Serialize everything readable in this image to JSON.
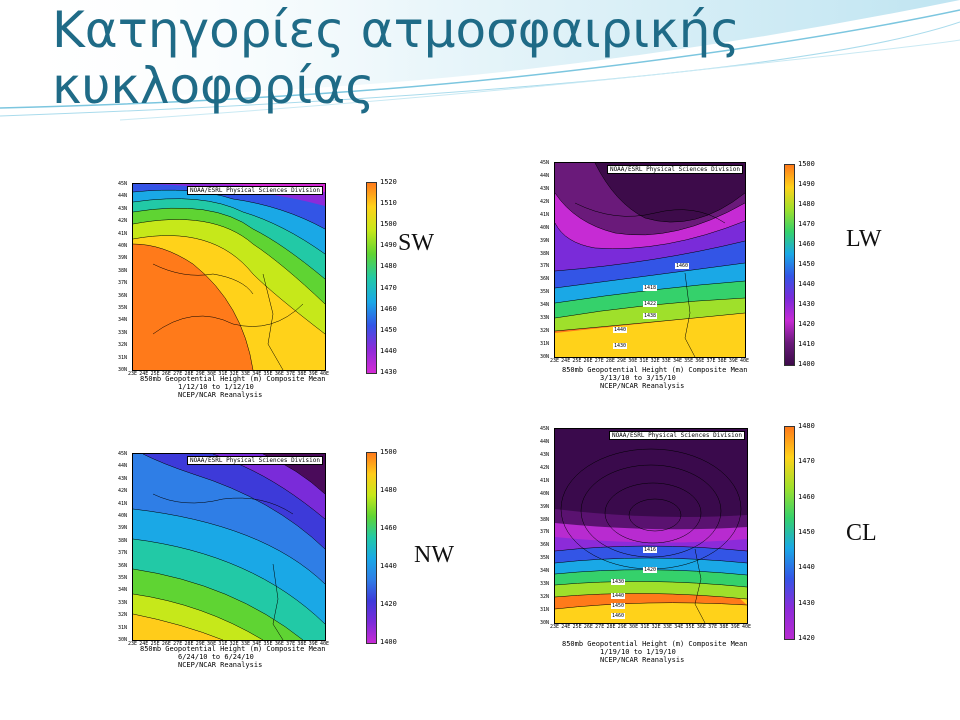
{
  "slide": {
    "title_line1": "Κατηγορίες ατμοσφαιρικής",
    "title_line2": "κυκλοφορίας"
  },
  "colors": {
    "title": "#1f6b87",
    "accent_band": "#8ccfe6"
  },
  "common": {
    "header": "NOAA/ESRL Physical Sciences Division",
    "caption_line1": "850mb Geopotential Height (m) Composite Mean",
    "caption_line3": "NCEP/NCAR Reanalysis",
    "lon_labels": [
      "23E",
      "24E",
      "25E",
      "26E",
      "27E",
      "28E",
      "29E",
      "30E",
      "31E",
      "32E",
      "33E",
      "34E",
      "35E",
      "36E",
      "37E",
      "38E",
      "39E",
      "40E"
    ]
  },
  "panels": [
    {
      "id": "sw",
      "tag": "SW",
      "dates": "1/12/10 to 1/12/10",
      "lat_labels": [
        "45N",
        "44N",
        "43N",
        "42N",
        "41N",
        "40N",
        "39N",
        "38N",
        "37N",
        "36N",
        "35N",
        "34N",
        "33N",
        "32N",
        "31N",
        "30N"
      ],
      "colorbar": [
        "1520",
        "1510",
        "1500",
        "1490",
        "1480",
        "1470",
        "1460",
        "1450",
        "1440",
        "1430"
      ],
      "contour_labels": []
    },
    {
      "id": "lw",
      "tag": "LW",
      "dates": "3/13/10 to 3/15/10",
      "lat_labels": [
        "45N",
        "44N",
        "43N",
        "42N",
        "41N",
        "40N",
        "39N",
        "38N",
        "37N",
        "36N",
        "35N",
        "34N",
        "33N",
        "32N",
        "31N",
        "30N"
      ],
      "colorbar": [
        "1500",
        "1490",
        "1480",
        "1470",
        "1460",
        "1450",
        "1440",
        "1430",
        "1420",
        "1410",
        "1400"
      ],
      "contour_labels": [
        "1460",
        "1418",
        "1422",
        "1438",
        "1440",
        "1430"
      ]
    },
    {
      "id": "nw",
      "tag": "NW",
      "dates": "6/24/10 to 6/24/10",
      "lat_labels": [
        "45N",
        "44N",
        "43N",
        "42N",
        "41N",
        "40N",
        "39N",
        "38N",
        "37N",
        "36N",
        "35N",
        "34N",
        "33N",
        "32N",
        "31N",
        "30N"
      ],
      "colorbar": [
        "1500",
        "1480",
        "1460",
        "1440",
        "1420",
        "1400"
      ],
      "contour_labels": []
    },
    {
      "id": "cl",
      "tag": "CL",
      "dates": "1/19/10 to 1/19/10",
      "lat_labels": [
        "45N",
        "44N",
        "43N",
        "42N",
        "41N",
        "40N",
        "39N",
        "38N",
        "37N",
        "36N",
        "35N",
        "34N",
        "33N",
        "32N",
        "31N",
        "30N"
      ],
      "colorbar": [
        "1480",
        "1470",
        "1460",
        "1450",
        "1440",
        "1430",
        "1420"
      ],
      "contour_labels": [
        "1416",
        "1420",
        "1430",
        "1440",
        "1450",
        "1460"
      ]
    }
  ]
}
